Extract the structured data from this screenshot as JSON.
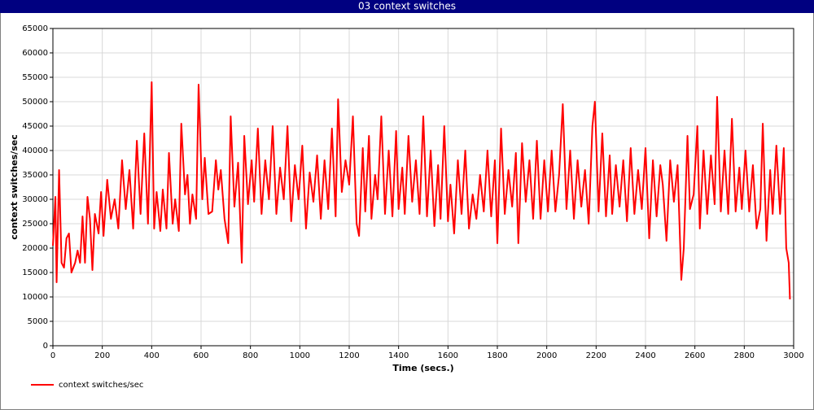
{
  "chart_data": {
    "type": "line",
    "title": "03 context switches",
    "xlabel": "Time (secs.)",
    "ylabel": "context switches/sec",
    "x": [
      0,
      10,
      15,
      25,
      35,
      45,
      55,
      65,
      75,
      90,
      100,
      110,
      120,
      130,
      140,
      150,
      160,
      170,
      185,
      195,
      205,
      220,
      235,
      250,
      265,
      280,
      295,
      310,
      325,
      340,
      355,
      370,
      385,
      400,
      410,
      420,
      435,
      445,
      460,
      470,
      485,
      495,
      510,
      520,
      535,
      545,
      555,
      565,
      580,
      590,
      605,
      615,
      630,
      645,
      660,
      670,
      680,
      695,
      710,
      720,
      735,
      750,
      765,
      775,
      790,
      805,
      815,
      830,
      845,
      860,
      875,
      890,
      905,
      920,
      935,
      950,
      965,
      980,
      995,
      1010,
      1025,
      1040,
      1055,
      1070,
      1085,
      1100,
      1115,
      1130,
      1145,
      1155,
      1170,
      1185,
      1200,
      1215,
      1230,
      1240,
      1255,
      1265,
      1280,
      1290,
      1305,
      1315,
      1330,
      1345,
      1360,
      1375,
      1390,
      1400,
      1415,
      1425,
      1440,
      1455,
      1470,
      1485,
      1500,
      1515,
      1530,
      1545,
      1560,
      1570,
      1585,
      1600,
      1610,
      1625,
      1640,
      1655,
      1670,
      1685,
      1700,
      1715,
      1730,
      1745,
      1760,
      1775,
      1790,
      1800,
      1815,
      1830,
      1845,
      1860,
      1875,
      1885,
      1900,
      1915,
      1930,
      1945,
      1960,
      1975,
      1990,
      2005,
      2020,
      2035,
      2050,
      2065,
      2080,
      2095,
      2110,
      2125,
      2140,
      2155,
      2170,
      2185,
      2195,
      2210,
      2225,
      2240,
      2255,
      2265,
      2280,
      2295,
      2310,
      2325,
      2340,
      2355,
      2370,
      2385,
      2400,
      2415,
      2430,
      2445,
      2460,
      2470,
      2485,
      2500,
      2515,
      2530,
      2545,
      2555,
      2570,
      2580,
      2595,
      2610,
      2620,
      2635,
      2650,
      2665,
      2680,
      2690,
      2705,
      2720,
      2735,
      2750,
      2765,
      2780,
      2790,
      2805,
      2820,
      2835,
      2850,
      2865,
      2875,
      2890,
      2905,
      2915,
      2930,
      2945,
      2960,
      2970,
      2980,
      2985
    ],
    "series": [
      {
        "name": "context switches/sec",
        "color": "#ff0000",
        "values": [
          20500,
          30500,
          13000,
          36000,
          17000,
          16000,
          22000,
          23000,
          15000,
          17000,
          19500,
          17000,
          26500,
          17000,
          30500,
          26000,
          15500,
          27000,
          23000,
          31500,
          22500,
          34000,
          26000,
          30000,
          24000,
          38000,
          28000,
          36000,
          24000,
          42000,
          27000,
          43500,
          25000,
          54000,
          24000,
          31500,
          23500,
          32000,
          24000,
          39500,
          25000,
          30000,
          23500,
          45500,
          31000,
          35000,
          25000,
          31000,
          26000,
          53500,
          30000,
          38500,
          27000,
          27500,
          38000,
          32000,
          36000,
          26000,
          21000,
          47000,
          28500,
          37500,
          17000,
          43000,
          29000,
          38000,
          29500,
          44500,
          27000,
          38000,
          30000,
          45000,
          27000,
          36500,
          30000,
          45000,
          25500,
          37000,
          30000,
          41000,
          24000,
          35500,
          29500,
          39000,
          26000,
          38000,
          28000,
          44500,
          26500,
          50500,
          31500,
          38000,
          33000,
          47000,
          25000,
          22500,
          40500,
          27500,
          43000,
          26000,
          35000,
          30000,
          47000,
          27000,
          40000,
          26500,
          44000,
          28000,
          36500,
          27000,
          43000,
          29500,
          38000,
          27000,
          47000,
          26500,
          40000,
          24500,
          37000,
          26000,
          45000,
          25500,
          33000,
          23000,
          38000,
          27000,
          40000,
          24000,
          31000,
          26000,
          35000,
          27500,
          40000,
          26500,
          38000,
          21000,
          44500,
          27000,
          36000,
          28500,
          39500,
          21000,
          41500,
          29500,
          38000,
          26000,
          42000,
          26000,
          38000,
          27500,
          40000,
          27500,
          35000,
          49500,
          28000,
          40000,
          26000,
          38000,
          28500,
          36000,
          25000,
          45000,
          50000,
          27500,
          43500,
          26500,
          39000,
          27000,
          37000,
          28500,
          38000,
          25500,
          40500,
          27000,
          36000,
          28000,
          40500,
          22000,
          38000,
          26500,
          37000,
          33000,
          21500,
          38000,
          29500,
          37000,
          13500,
          20000,
          43000,
          28000,
          31000,
          45000,
          24000,
          40000,
          27000,
          39000,
          29000,
          51000,
          27500,
          40000,
          27000,
          46500,
          27500,
          36500,
          28000,
          40000,
          27500,
          37000,
          24000,
          28000,
          45500,
          21500,
          36000,
          27000,
          41000,
          27000,
          40500,
          20000,
          17000,
          9500
        ]
      }
    ],
    "xlim": [
      0,
      3000
    ],
    "xticks": [
      0,
      200,
      400,
      600,
      800,
      1000,
      1200,
      1400,
      1600,
      1800,
      2000,
      2200,
      2400,
      2600,
      2800,
      3000
    ],
    "ylim": [
      0,
      65000
    ],
    "yticks": [
      0,
      5000,
      10000,
      15000,
      20000,
      25000,
      30000,
      35000,
      40000,
      45000,
      50000,
      55000,
      60000,
      65000
    ],
    "grid": true,
    "legend": "bottom-left"
  }
}
